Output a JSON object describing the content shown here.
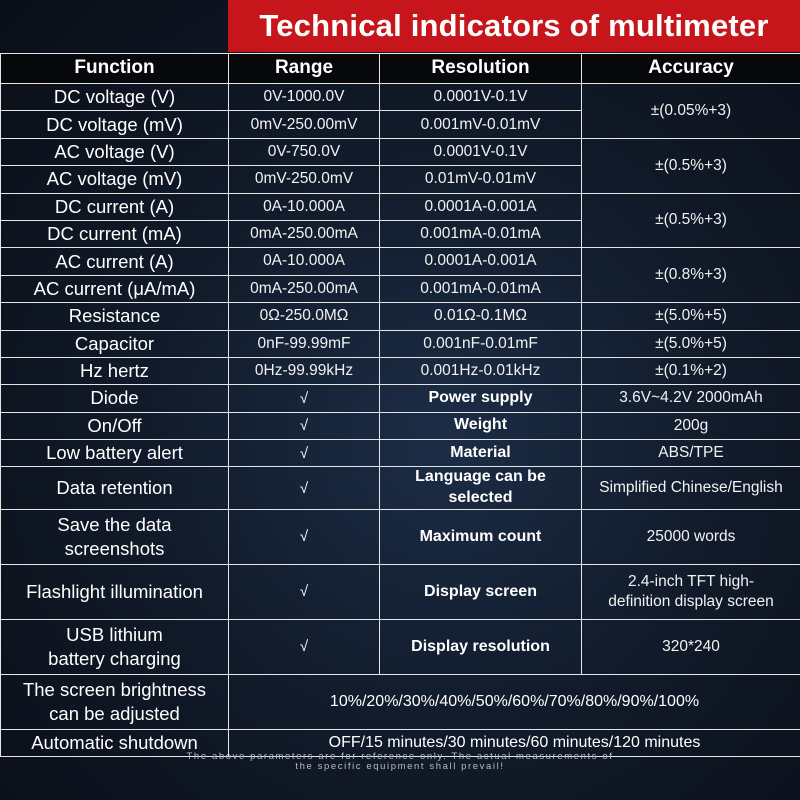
{
  "title": "Technical indicators of multimeter",
  "headers": [
    "Function",
    "Range",
    "Resolution",
    "Accuracy"
  ],
  "measurements": [
    {
      "function": "DC voltage (V)",
      "range": "0V-1000.0V",
      "resolution": "0.0001V-0.1V"
    },
    {
      "function": "DC voltage (mV)",
      "range": "0mV-250.00mV",
      "resolution": "0.001mV-0.01mV"
    },
    {
      "function": "AC voltage (V)",
      "range": "0V-750.0V",
      "resolution": "0.0001V-0.1V"
    },
    {
      "function": "AC voltage (mV)",
      "range": "0mV-250.0mV",
      "resolution": "0.01mV-0.01mV"
    },
    {
      "function": "DC current (A)",
      "range": "0A-10.000A",
      "resolution": "0.0001A-0.001A"
    },
    {
      "function": "DC current (mA)",
      "range": "0mA-250.00mA",
      "resolution": "0.001mA-0.01mA"
    },
    {
      "function": "AC current (A)",
      "range": "0A-10.000A",
      "resolution": "0.0001A-0.001A"
    },
    {
      "function": "AC current (μA/mA)",
      "range": "0mA-250.00mA",
      "resolution": "0.001mA-0.01mA"
    },
    {
      "function": "Resistance",
      "range": "0Ω-250.0MΩ",
      "resolution": "0.01Ω-0.1MΩ",
      "accuracy": "±(5.0%+5)"
    },
    {
      "function": "Capacitor",
      "range": "0nF-99.99mF",
      "resolution": "0.001nF-0.01mF",
      "accuracy": "±(5.0%+5)"
    },
    {
      "function": "Hz hertz",
      "range": "0Hz-99.99kHz",
      "resolution": "0.001Hz-0.01kHz",
      "accuracy": "±(0.1%+2)"
    }
  ],
  "accuracy_groups": [
    "±(0.05%+3)",
    "±(0.5%+3)",
    "±(0.5%+3)",
    "±(0.8%+3)"
  ],
  "features": [
    {
      "function": "Diode",
      "check": "√",
      "key": "Power supply",
      "value": "3.6V~4.2V 2000mAh"
    },
    {
      "function": "On/Off",
      "check": "√",
      "key": "Weight",
      "value": "200g"
    },
    {
      "function": "Low battery alert",
      "check": "√",
      "key": "Material",
      "value": "ABS/TPE"
    },
    {
      "function": "Data retention",
      "check": "√",
      "key": "Language can be selected",
      "value": "Simplified Chinese/English"
    }
  ],
  "features_tall": [
    {
      "function_l1": "Save the data",
      "function_l2": "screenshots",
      "check": "√",
      "key": "Maximum count",
      "value": "25000 words"
    },
    {
      "function": "Flashlight illumination",
      "check": "√",
      "key": "Display screen",
      "value_l1": "2.4-inch TFT high-",
      "value_l2": "definition display screen"
    },
    {
      "function_l1": "USB lithium",
      "function_l2": "battery charging",
      "check": "√",
      "key": "Display resolution",
      "value": "320*240"
    }
  ],
  "brightness": {
    "label_l1": "The screen brightness",
    "label_l2": "can be adjusted",
    "value": "10%/20%/30%/40%/50%/60%/70%/80%/90%/100%"
  },
  "shutdown": {
    "label": "Automatic shutdown",
    "value": "OFF/15 minutes/30 minutes/60 minutes/120 minutes"
  },
  "footnote": {
    "line1": "The above parameters are for reference only. The actual measurements of",
    "line2": "the specific equipment shall prevail!"
  }
}
